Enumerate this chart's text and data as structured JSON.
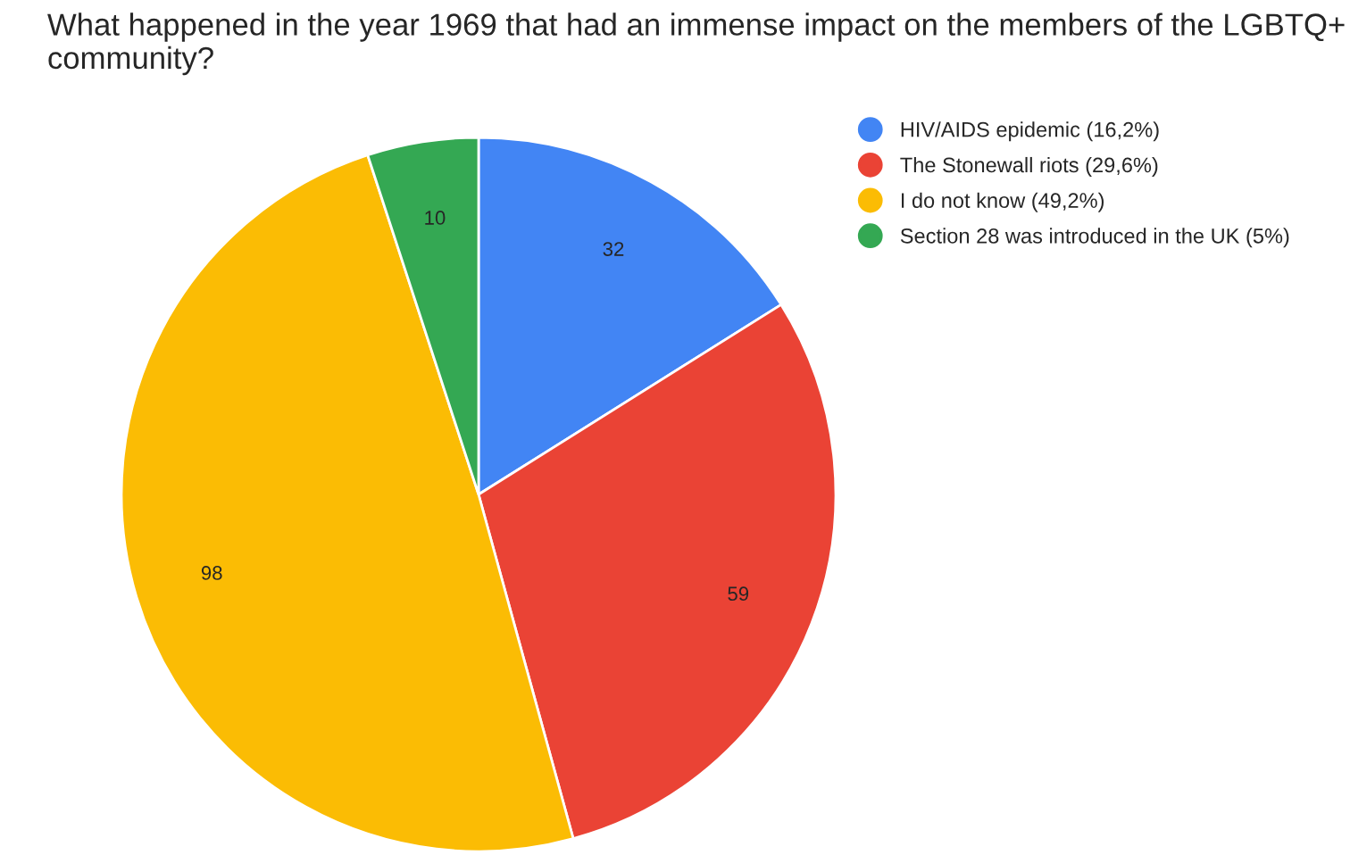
{
  "chart_data": {
    "type": "pie",
    "title": "What happened in the year 1969 that had an immense impact on the members of the LGBTQ+ community?",
    "categories": [
      "HIV/AIDS epidemic (16,2%)",
      "The Stonewall riots (29,6%)",
      "I do not know (49,2%)",
      "Section 28 was introduced in the UK (5%)"
    ],
    "values": [
      32,
      59,
      98,
      10
    ],
    "colors": [
      "#4285f4",
      "#ea4335",
      "#fbbc04",
      "#34a853"
    ],
    "data_labels": true,
    "legend": "top right"
  }
}
